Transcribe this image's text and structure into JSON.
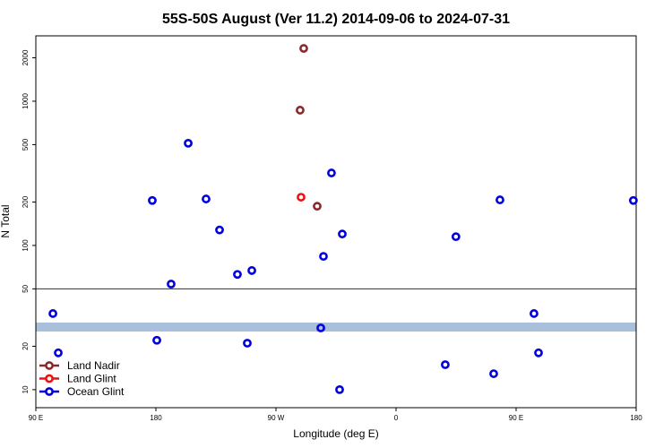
{
  "chart_data": {
    "type": "scatter",
    "title": "55S-50S August (Ver 11.2)   2014-09-06 to 2024-07-31",
    "x_label": "Longitude (deg E)",
    "y_label": "N Total",
    "xlim": [
      90,
      540
    ],
    "ylim": [
      7.5,
      2840
    ],
    "log_y": true,
    "xticks": [
      {
        "value": 90,
        "label": "90 E"
      },
      180,
      {
        "value": 270,
        "label": "90 W"
      },
      {
        "value": 360,
        "label": "0"
      },
      {
        "value": 450,
        "label": "90 E"
      },
      {
        "value": 540,
        "label": "180"
      }
    ],
    "yticks": [
      10,
      20,
      50,
      100,
      200,
      500,
      1000,
      2000
    ],
    "hline": 50,
    "band": [
      25.3,
      29.2
    ],
    "band_color": "#a9bfdc",
    "legend": "bottom-left",
    "series": [
      {
        "name": "Land Nadir",
        "color": "#8b2a2a",
        "x": [
          290.8,
          288.1,
          300.9
        ],
        "values": [
          2323,
          867,
          187
        ]
      },
      {
        "name": "Land Glint",
        "color": "#ee1111",
        "x": [
          288.8
        ],
        "values": [
          216
        ]
      },
      {
        "name": "Ocean Glint",
        "color": "#0000dd",
        "x": [
          102.8,
          106.8,
          177.3,
          180.7,
          191.4,
          204.2,
          217.6,
          227.7,
          241.1,
          248.5,
          251.9,
          303.6,
          305.6,
          311.6,
          317.7,
          319.7,
          396.9,
          404.9,
          433.2,
          437.9,
          463.4,
          466.8,
          537.9
        ],
        "values": [
          33.7,
          18,
          205,
          22,
          54,
          511,
          210,
          128,
          63,
          21,
          67,
          26.8,
          84,
          318,
          10,
          120,
          14.9,
          115,
          12.9,
          207,
          33.7,
          18,
          205
        ]
      }
    ]
  }
}
